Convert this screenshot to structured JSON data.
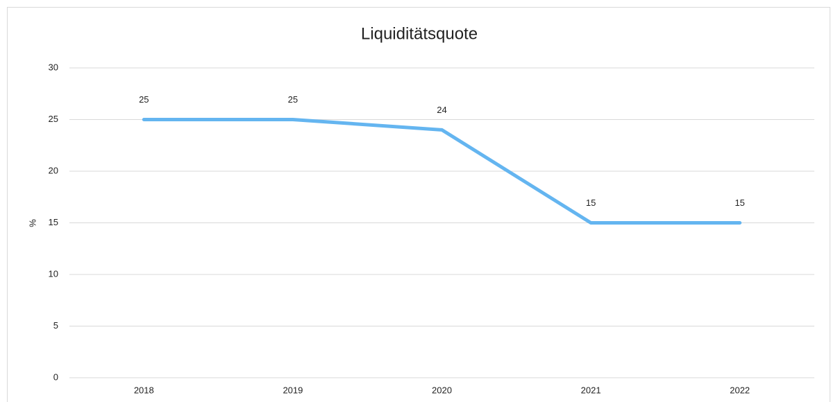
{
  "chart_data": {
    "type": "line",
    "title": "Liquiditätsquote",
    "y_label": "%",
    "categories": [
      "2018",
      "2019",
      "2020",
      "2021",
      "2022"
    ],
    "series": [
      {
        "name": "Liquiditätsquote",
        "color": "#64b5f0",
        "values": [
          25,
          25,
          24,
          15,
          15
        ]
      }
    ],
    "ylim": [
      0,
      30
    ],
    "yticks": [
      0,
      5,
      10,
      15,
      20,
      25,
      30
    ],
    "grid": true,
    "data_labels": true
  }
}
